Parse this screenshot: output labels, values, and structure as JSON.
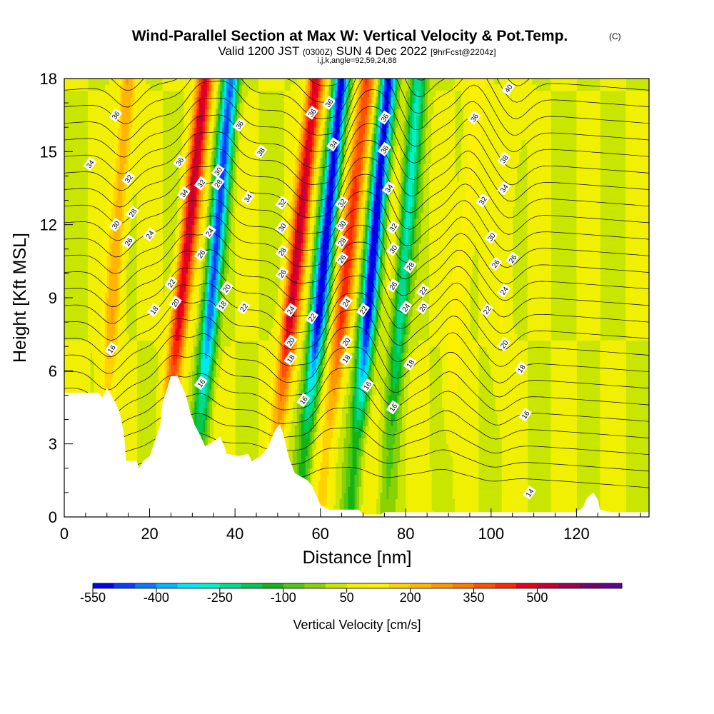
{
  "header": {
    "title": "Wind-Parallel Section at Max W: Vertical Velocity & Pot.Temp.",
    "copyright": "(C)",
    "subtitle_valid": "Valid 1200 JST",
    "subtitle_z": "(0300Z)",
    "subtitle_date": "SUN 4 Dec 2022",
    "subtitle_fcst": "[9hrFcst@2204z]",
    "indices": "i,j,k,angle=92,59,24,88"
  },
  "colorbar": {
    "label": "Vertical Velocity [cm/s]",
    "tick_labels": [
      "-550",
      "-400",
      "-250",
      "-100",
      "50",
      "200",
      "350",
      "500"
    ],
    "tick_values": [
      -550,
      -400,
      -250,
      -100,
      50,
      200,
      350,
      500
    ],
    "levels_min": -550,
    "levels_step": 50,
    "colors": [
      "#0000f0",
      "#0a3cff",
      "#0a78ff",
      "#00b4ff",
      "#00e6ff",
      "#00f0c8",
      "#00dc8c",
      "#00c850",
      "#14b414",
      "#50c814",
      "#8cd200",
      "#c8e600",
      "#f0f000",
      "#fff000",
      "#ffd200",
      "#ffb400",
      "#ff9600",
      "#ff7800",
      "#ff5000",
      "#ff2800",
      "#e6001e",
      "#c80032",
      "#a00050",
      "#78006e",
      "#640096"
    ]
  },
  "chart_data": {
    "type": "heatmap",
    "title": "Wind-Parallel Section at Max W: Vertical Velocity & Pot.Temp.",
    "xlabel": "Distance [nm]",
    "ylabel": "Height [Kft MSL]",
    "xlim": [
      0,
      137
    ],
    "ylim": [
      0,
      18
    ],
    "x_ticks": [
      0,
      20,
      40,
      60,
      80,
      100,
      120
    ],
    "y_ticks": [
      0,
      3,
      6,
      9,
      12,
      15,
      18
    ],
    "fill_field": "Vertical Velocity [cm/s]",
    "contour_field": "Pot.Temp. (C)",
    "updraft_bands": [
      {
        "x_at_surface": 22,
        "x_at_top": 33,
        "peak_cm_s": 500
      },
      {
        "x_at_surface": 48,
        "x_at_top": 59,
        "peak_cm_s": 500
      },
      {
        "x_at_surface": 60,
        "x_at_top": 71,
        "peak_cm_s": 400
      },
      {
        "x_at_surface": 8,
        "x_at_top": 15,
        "peak_cm_s": 250
      },
      {
        "x_at_surface": 88,
        "x_at_top": 97,
        "peak_cm_s": 150
      },
      {
        "x_at_surface": 100,
        "x_at_top": 106,
        "peak_cm_s": 100
      }
    ],
    "downdraft_bands": [
      {
        "x_at_surface": 30,
        "x_at_top": 39,
        "peak_cm_s": -450
      },
      {
        "x_at_surface": 55,
        "x_at_top": 65,
        "peak_cm_s": -550
      },
      {
        "x_at_surface": 67,
        "x_at_top": 76,
        "peak_cm_s": -550
      },
      {
        "x_at_surface": 75,
        "x_at_top": 83,
        "peak_cm_s": -250
      }
    ],
    "terrain_kft": [
      [
        0,
        5.1
      ],
      [
        8,
        5.1
      ],
      [
        9,
        4.9
      ],
      [
        10,
        5.3
      ],
      [
        12,
        4.7
      ],
      [
        13,
        4.3
      ],
      [
        14,
        3.4
      ],
      [
        14.5,
        2.3
      ],
      [
        17,
        2.3
      ],
      [
        17.5,
        2.0
      ],
      [
        18.5,
        2.3
      ],
      [
        20,
        2.5
      ],
      [
        21,
        3.0
      ],
      [
        22.5,
        3.8
      ],
      [
        23,
        4.7
      ],
      [
        24,
        5.2
      ],
      [
        25,
        5.8
      ],
      [
        26.5,
        5.8
      ],
      [
        27.5,
        5.4
      ],
      [
        28.5,
        5.0
      ],
      [
        29.5,
        4.3
      ],
      [
        30.5,
        3.8
      ],
      [
        32,
        3.3
      ],
      [
        33,
        2.9
      ],
      [
        35,
        3.1
      ],
      [
        36.5,
        3.3
      ],
      [
        37.5,
        2.9
      ],
      [
        38,
        2.6
      ],
      [
        41,
        2.5
      ],
      [
        43,
        2.6
      ],
      [
        44,
        2.3
      ],
      [
        46,
        2.5
      ],
      [
        47.5,
        2.8
      ],
      [
        48.5,
        3.2
      ],
      [
        49.5,
        3.6
      ],
      [
        50.5,
        3.8
      ],
      [
        51.5,
        3.3
      ],
      [
        52.5,
        2.5
      ],
      [
        54,
        1.8
      ],
      [
        57,
        1.5
      ],
      [
        58,
        1.3
      ],
      [
        59,
        0.9
      ],
      [
        60,
        0.5
      ],
      [
        61,
        0.4
      ],
      [
        62,
        0.3
      ],
      [
        69,
        0.3
      ],
      [
        70,
        0.1
      ],
      [
        74,
        0.1
      ],
      [
        75,
        0.2
      ],
      [
        100,
        0.2
      ],
      [
        120,
        0.2
      ],
      [
        121.5,
        0.4
      ],
      [
        122.5,
        0.8
      ],
      [
        124,
        1.0
      ],
      [
        125,
        0.7
      ],
      [
        125.5,
        0.3
      ],
      [
        128,
        0.2
      ],
      [
        137,
        0.2
      ]
    ],
    "contour_labels": [
      {
        "x": 12,
        "y": 16.5,
        "text": "36"
      },
      {
        "x": 6,
        "y": 14.5,
        "text": "34"
      },
      {
        "x": 15,
        "y": 13.9,
        "text": "32"
      },
      {
        "x": 16,
        "y": 12.5,
        "text": "28"
      },
      {
        "x": 12,
        "y": 12.0,
        "text": "30"
      },
      {
        "x": 15,
        "y": 11.3,
        "text": "26"
      },
      {
        "x": 20,
        "y": 11.6,
        "text": "24"
      },
      {
        "x": 25,
        "y": 9.6,
        "text": "22"
      },
      {
        "x": 21,
        "y": 8.5,
        "text": "18"
      },
      {
        "x": 26,
        "y": 8.8,
        "text": "20"
      },
      {
        "x": 11,
        "y": 6.9,
        "text": "16"
      },
      {
        "x": 27,
        "y": 14.6,
        "text": "36"
      },
      {
        "x": 28,
        "y": 13.3,
        "text": "34"
      },
      {
        "x": 32,
        "y": 13.7,
        "text": "32"
      },
      {
        "x": 36,
        "y": 14.2,
        "text": "30"
      },
      {
        "x": 36,
        "y": 13.7,
        "text": "28"
      },
      {
        "x": 34,
        "y": 11.7,
        "text": "24"
      },
      {
        "x": 32,
        "y": 10.8,
        "text": "26"
      },
      {
        "x": 38,
        "y": 9.4,
        "text": "20"
      },
      {
        "x": 37,
        "y": 8.7,
        "text": "18"
      },
      {
        "x": 42,
        "y": 8.6,
        "text": "22"
      },
      {
        "x": 32,
        "y": 5.5,
        "text": "16"
      },
      {
        "x": 41,
        "y": 16.1,
        "text": "36"
      },
      {
        "x": 46,
        "y": 15.0,
        "text": "38"
      },
      {
        "x": 43,
        "y": 13.1,
        "text": "34"
      },
      {
        "x": 51,
        "y": 12.9,
        "text": "32"
      },
      {
        "x": 51,
        "y": 11.9,
        "text": "30"
      },
      {
        "x": 51,
        "y": 10.9,
        "text": "28"
      },
      {
        "x": 51,
        "y": 10.0,
        "text": "26"
      },
      {
        "x": 53,
        "y": 8.5,
        "text": "24"
      },
      {
        "x": 53,
        "y": 7.2,
        "text": "20"
      },
      {
        "x": 53,
        "y": 6.5,
        "text": "18"
      },
      {
        "x": 56,
        "y": 4.8,
        "text": "16"
      },
      {
        "x": 58,
        "y": 16.6,
        "text": "36"
      },
      {
        "x": 62,
        "y": 17.0,
        "text": "36"
      },
      {
        "x": 63,
        "y": 15.3,
        "text": "34"
      },
      {
        "x": 58,
        "y": 8.2,
        "text": "22"
      },
      {
        "x": 65,
        "y": 12.9,
        "text": "32"
      },
      {
        "x": 65,
        "y": 12.0,
        "text": "30"
      },
      {
        "x": 65,
        "y": 11.3,
        "text": "28"
      },
      {
        "x": 65,
        "y": 10.6,
        "text": "26"
      },
      {
        "x": 66,
        "y": 8.8,
        "text": "24"
      },
      {
        "x": 66,
        "y": 7.2,
        "text": "20"
      },
      {
        "x": 66,
        "y": 6.5,
        "text": "18"
      },
      {
        "x": 70,
        "y": 8.5,
        "text": "22"
      },
      {
        "x": 71,
        "y": 5.4,
        "text": "16"
      },
      {
        "x": 75,
        "y": 16.4,
        "text": "36"
      },
      {
        "x": 75,
        "y": 15.1,
        "text": "36"
      },
      {
        "x": 76,
        "y": 13.5,
        "text": "34"
      },
      {
        "x": 77,
        "y": 11.9,
        "text": "32"
      },
      {
        "x": 77,
        "y": 11.0,
        "text": "30"
      },
      {
        "x": 77,
        "y": 9.5,
        "text": "26"
      },
      {
        "x": 81,
        "y": 10.3,
        "text": "28"
      },
      {
        "x": 80,
        "y": 8.6,
        "text": "24"
      },
      {
        "x": 84,
        "y": 9.3,
        "text": "22"
      },
      {
        "x": 84,
        "y": 8.6,
        "text": "20"
      },
      {
        "x": 81,
        "y": 6.3,
        "text": "18"
      },
      {
        "x": 77,
        "y": 4.5,
        "text": "16"
      },
      {
        "x": 96,
        "y": 16.4,
        "text": "36"
      },
      {
        "x": 104,
        "y": 17.6,
        "text": "40"
      },
      {
        "x": 103,
        "y": 14.7,
        "text": "38"
      },
      {
        "x": 103,
        "y": 13.5,
        "text": "34"
      },
      {
        "x": 98,
        "y": 13.0,
        "text": "32"
      },
      {
        "x": 100,
        "y": 11.5,
        "text": "30"
      },
      {
        "x": 101,
        "y": 10.4,
        "text": "26"
      },
      {
        "x": 105,
        "y": 10.6,
        "text": "26"
      },
      {
        "x": 103,
        "y": 9.3,
        "text": "24"
      },
      {
        "x": 99,
        "y": 8.5,
        "text": "22"
      },
      {
        "x": 103,
        "y": 7.1,
        "text": "20"
      },
      {
        "x": 107,
        "y": 6.1,
        "text": "18"
      },
      {
        "x": 108,
        "y": 4.2,
        "text": "16"
      },
      {
        "x": 109,
        "y": 1.0,
        "text": "14"
      }
    ]
  }
}
